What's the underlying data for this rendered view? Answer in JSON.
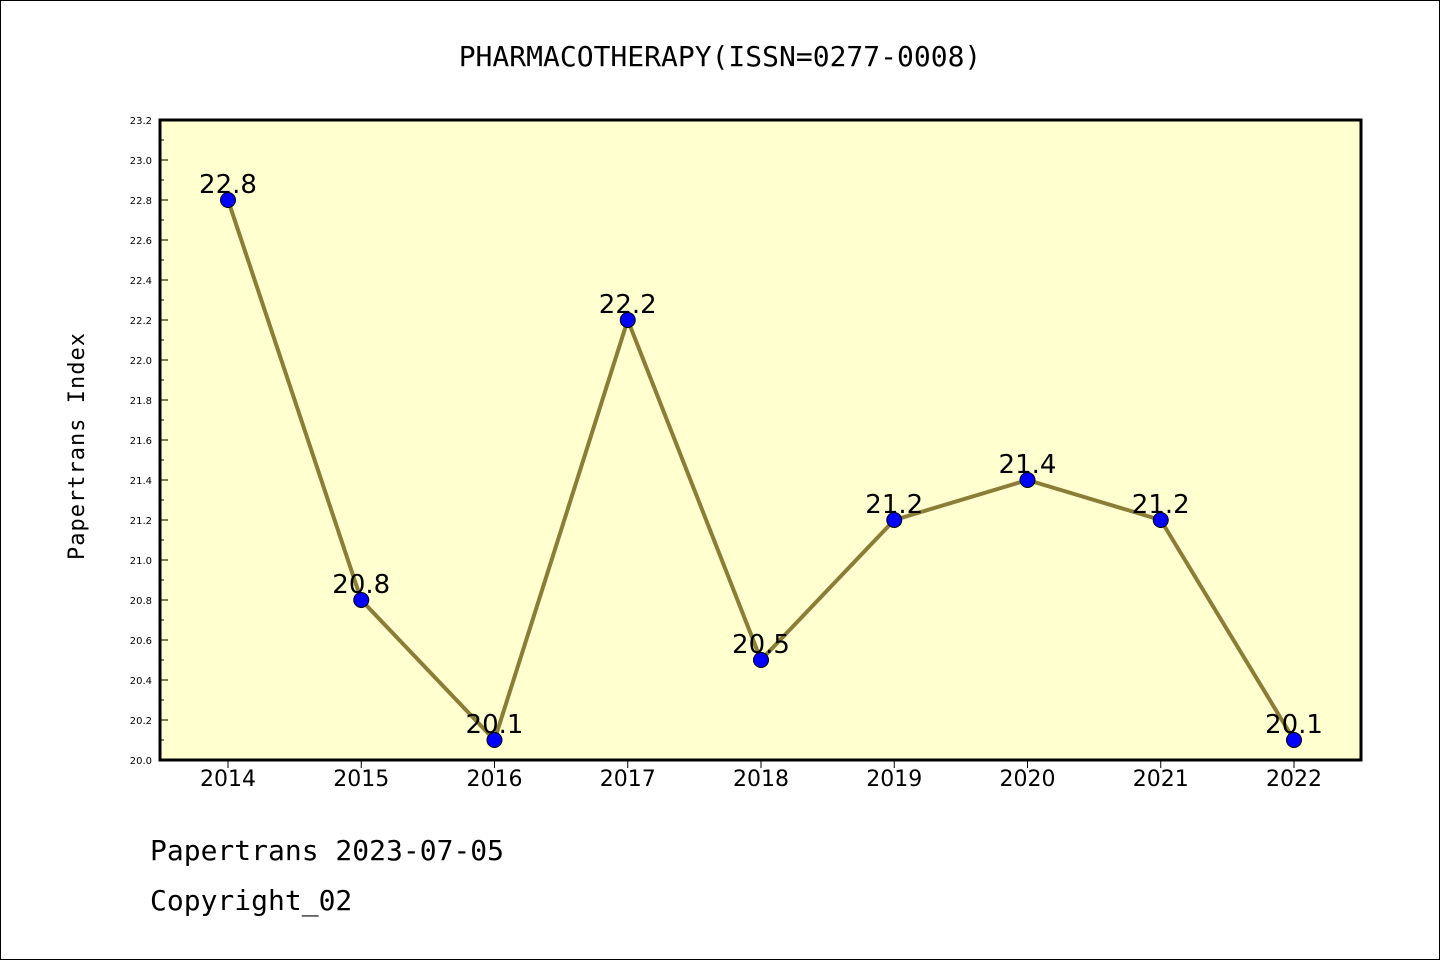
{
  "chart_data": {
    "type": "line",
    "title": "PHARMACOTHERAPY(ISSN=0277-0008)",
    "xlabel": "",
    "ylabel": "Papertrans Index",
    "x": [
      "2014",
      "2015",
      "2016",
      "2017",
      "2018",
      "2019",
      "2020",
      "2021",
      "2022"
    ],
    "values": [
      22.8,
      20.8,
      20.1,
      22.2,
      20.5,
      21.2,
      21.4,
      21.2,
      20.1
    ],
    "data_labels": [
      "22.8",
      "20.8",
      "20.1",
      "22.2",
      "20.5",
      "21.2",
      "21.4",
      "21.2",
      "20.1"
    ],
    "ylim": [
      20.0,
      23.2
    ],
    "yticks": [
      "20.0",
      "20.2",
      "20.4",
      "20.6",
      "20.8",
      "21.0",
      "21.2",
      "21.4",
      "21.6",
      "21.8",
      "22.0",
      "22.2",
      "22.4",
      "22.6",
      "22.8",
      "23.0",
      "23.2"
    ],
    "grid": false,
    "plot_background": "#ffffd0",
    "line_color": "#8b7d36",
    "marker_color": "#0000ff"
  },
  "footer": {
    "line1": "Papertrans 2023-07-05",
    "line2": "Copyright_02"
  }
}
